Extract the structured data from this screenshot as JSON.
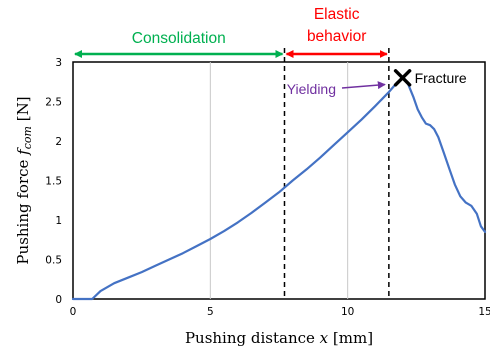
{
  "chart_data": {
    "type": "line",
    "xlabel_prefix": "Pushing distance ",
    "xlabel_var": "x",
    "xlabel_unit": " [mm]",
    "ylabel_prefix": "Pushing force ",
    "ylabel_var": "f",
    "ylabel_sub": "com",
    "ylabel_unit": " [N]",
    "xlim": [
      0,
      15
    ],
    "ylim": [
      0,
      3
    ],
    "x_ticks": [
      {
        "value": 0,
        "label": "0"
      },
      {
        "value": 5,
        "label": "5"
      },
      {
        "value": 10,
        "label": "10"
      },
      {
        "value": 15,
        "label": "15"
      }
    ],
    "y_ticks": [
      {
        "value": 0,
        "label": "0"
      },
      {
        "value": 0.5,
        "label": "0.5"
      },
      {
        "value": 1,
        "label": "1"
      },
      {
        "value": 1.5,
        "label": "1.5"
      },
      {
        "value": 2,
        "label": "2"
      },
      {
        "value": 2.5,
        "label": "2.5"
      },
      {
        "value": 3,
        "label": "3"
      }
    ],
    "grid": "vertical",
    "series": [
      {
        "color": "#4472c4",
        "x": [
          0,
          0.7,
          1.0,
          1.5,
          2.0,
          2.5,
          3.0,
          3.5,
          4.0,
          4.5,
          5.0,
          5.5,
          6.0,
          6.5,
          7.0,
          7.5,
          8.0,
          8.5,
          9.0,
          9.5,
          10.0,
          10.5,
          11.0,
          11.5,
          11.8,
          12.0,
          12.2,
          12.4,
          12.55,
          12.7,
          12.85,
          13.0,
          13.15,
          13.3,
          13.5,
          13.7,
          13.9,
          14.1,
          14.3,
          14.5,
          14.7,
          14.85,
          15.0
        ],
        "y": [
          0,
          0,
          0.1,
          0.2,
          0.27,
          0.34,
          0.42,
          0.5,
          0.58,
          0.67,
          0.76,
          0.86,
          0.97,
          1.09,
          1.22,
          1.35,
          1.5,
          1.64,
          1.79,
          1.95,
          2.11,
          2.27,
          2.44,
          2.62,
          2.74,
          2.8,
          2.72,
          2.55,
          2.4,
          2.3,
          2.22,
          2.2,
          2.15,
          2.05,
          1.85,
          1.65,
          1.45,
          1.3,
          1.22,
          1.18,
          1.08,
          0.92,
          0.85
        ]
      }
    ],
    "phase_lines_x": [
      7.7,
      11.5
    ],
    "phases": [
      {
        "label": "Consolidation",
        "from": 0,
        "to": 7.7,
        "color": "#00b050"
      },
      {
        "label_line1": "Elastic",
        "label_line2": "behavior",
        "from": 7.7,
        "to": 11.5,
        "color": "#ff0000"
      }
    ],
    "annotations": {
      "yielding": {
        "text": "Yielding",
        "color": "#7030a0",
        "x": 11.5,
        "y": 2.74
      },
      "fracture": {
        "text": "Fracture",
        "x": 12.0,
        "y": 2.8
      }
    }
  }
}
